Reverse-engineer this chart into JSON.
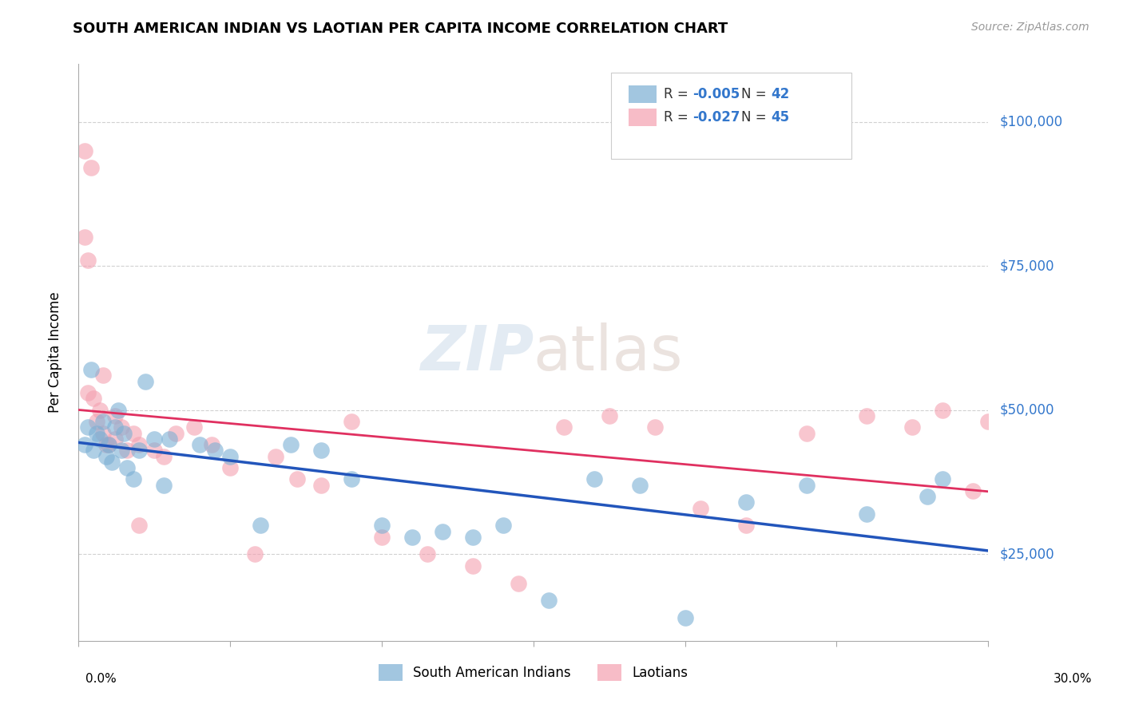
{
  "title": "SOUTH AMERICAN INDIAN VS LAOTIAN PER CAPITA INCOME CORRELATION CHART",
  "source": "Source: ZipAtlas.com",
  "ylabel": "Per Capita Income",
  "xlim": [
    0.0,
    0.3
  ],
  "ylim": [
    10000,
    110000
  ],
  "watermark_zip": "ZIP",
  "watermark_atlas": "atlas",
  "blue_color": "#7BAFD4",
  "pink_color": "#F4A0B0",
  "blue_line_color": "#2255BB",
  "pink_line_color": "#E03060",
  "blue_R": -0.005,
  "blue_N": 42,
  "pink_R": -0.027,
  "pink_N": 45,
  "blue_x": [
    0.002,
    0.003,
    0.004,
    0.005,
    0.006,
    0.007,
    0.008,
    0.009,
    0.01,
    0.011,
    0.012,
    0.013,
    0.014,
    0.015,
    0.016,
    0.018,
    0.02,
    0.022,
    0.025,
    0.028,
    0.03,
    0.04,
    0.045,
    0.05,
    0.06,
    0.07,
    0.08,
    0.09,
    0.1,
    0.11,
    0.12,
    0.13,
    0.14,
    0.155,
    0.17,
    0.185,
    0.2,
    0.22,
    0.24,
    0.26,
    0.28,
    0.285
  ],
  "blue_y": [
    44000,
    47000,
    57000,
    43000,
    46000,
    45000,
    48000,
    42000,
    44000,
    41000,
    47000,
    50000,
    43000,
    46000,
    40000,
    38000,
    43000,
    55000,
    45000,
    37000,
    45000,
    44000,
    43000,
    42000,
    30000,
    44000,
    43000,
    38000,
    30000,
    28000,
    29000,
    28000,
    30000,
    17000,
    38000,
    37000,
    14000,
    34000,
    37000,
    32000,
    35000,
    38000
  ],
  "pink_x": [
    0.002,
    0.003,
    0.004,
    0.005,
    0.006,
    0.007,
    0.008,
    0.009,
    0.01,
    0.012,
    0.014,
    0.016,
    0.018,
    0.02,
    0.025,
    0.028,
    0.032,
    0.038,
    0.044,
    0.05,
    0.058,
    0.065,
    0.072,
    0.08,
    0.09,
    0.1,
    0.115,
    0.13,
    0.145,
    0.16,
    0.175,
    0.19,
    0.205,
    0.22,
    0.24,
    0.26,
    0.275,
    0.285,
    0.295,
    0.3,
    0.002,
    0.003,
    0.008,
    0.012,
    0.02
  ],
  "pink_y": [
    95000,
    53000,
    92000,
    52000,
    48000,
    50000,
    46000,
    44000,
    44000,
    45000,
    47000,
    43000,
    46000,
    44000,
    43000,
    42000,
    46000,
    47000,
    44000,
    40000,
    25000,
    42000,
    38000,
    37000,
    48000,
    28000,
    25000,
    23000,
    20000,
    47000,
    49000,
    47000,
    33000,
    30000,
    46000,
    49000,
    47000,
    50000,
    36000,
    48000,
    80000,
    76000,
    56000,
    49000,
    30000
  ]
}
